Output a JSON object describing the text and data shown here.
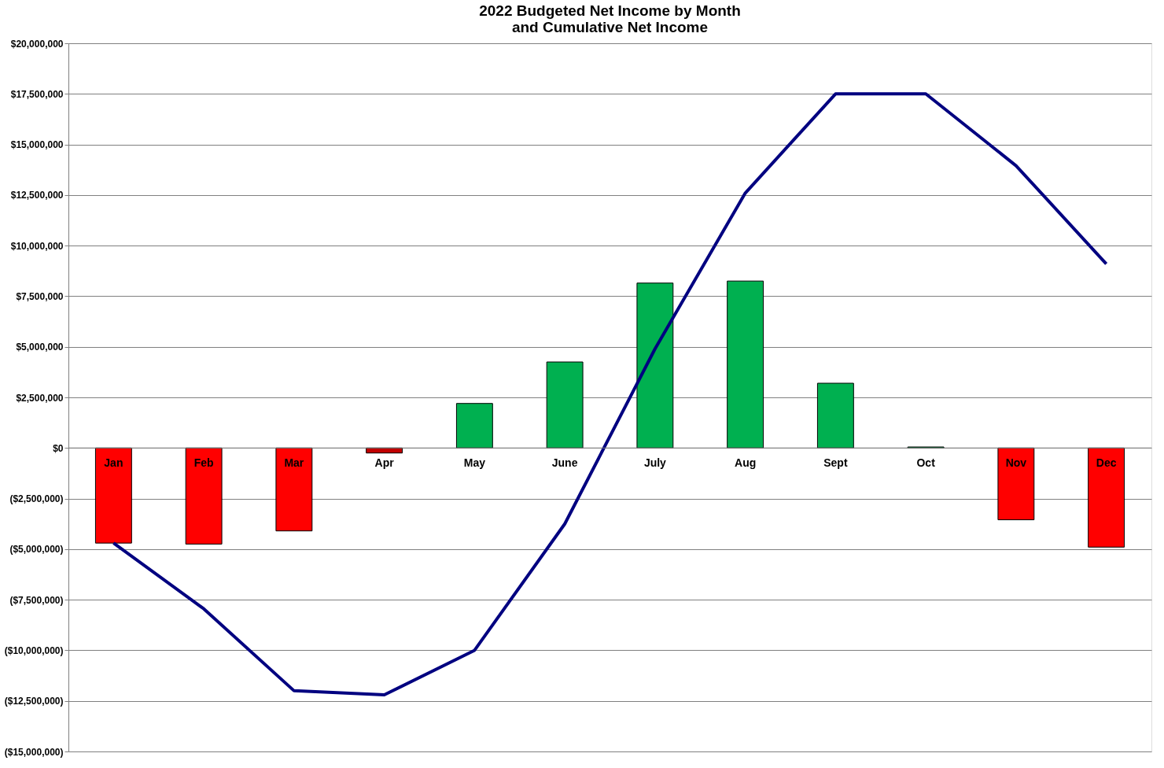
{
  "chart_data": {
    "type": "bar",
    "title": "2022 Budgeted Net Income by Month\nand Cumulative Net Income",
    "categories": [
      "Jan",
      "Feb",
      "Mar",
      "Apr",
      "May",
      "June",
      "July",
      "Aug",
      "Sept",
      "Oct",
      "Nov",
      "Dec"
    ],
    "series": [
      {
        "type": "bar",
        "colors": [
          "#ff0000",
          "#ff0000",
          "#ff0000",
          "#c00000",
          "#00b050",
          "#00b050",
          "#00b050",
          "#00b050",
          "#00b050",
          "#00b050",
          "#ff0000",
          "#ff0000"
        ],
        "values": [
          -4700000,
          -4750000,
          -4100000,
          -250000,
          2200000,
          4250000,
          8150000,
          8250000,
          3200000,
          50000,
          -3550000,
          -4900000
        ]
      },
      {
        "type": "line",
        "color": "#000080",
        "values": [
          -4700000,
          -7950000,
          -12000000,
          -12200000,
          -10000000,
          -3750000,
          4900000,
          12600000,
          17500000,
          17500000,
          13950000,
          9100000
        ]
      }
    ],
    "ylim": [
      -15000000,
      20000000
    ],
    "yticks": [
      {
        "value": -15000000,
        "label": "($15,000,000)"
      },
      {
        "value": -12500000,
        "label": "($12,500,000)"
      },
      {
        "value": -10000000,
        "label": "($10,000,000)"
      },
      {
        "value": -7500000,
        "label": "($7,500,000)"
      },
      {
        "value": -5000000,
        "label": "($5,000,000)"
      },
      {
        "value": -2500000,
        "label": "($2,500,000)"
      },
      {
        "value": 0,
        "label": "$0"
      },
      {
        "value": 2500000,
        "label": "$2,500,000"
      },
      {
        "value": 5000000,
        "label": "$5,000,000"
      },
      {
        "value": 7500000,
        "label": "$7,500,000"
      },
      {
        "value": 10000000,
        "label": "$10,000,000"
      },
      {
        "value": 12500000,
        "label": "$12,500,000"
      },
      {
        "value": 15000000,
        "label": "$15,000,000"
      },
      {
        "value": 17500000,
        "label": "$17,500,000"
      },
      {
        "value": 20000000,
        "label": "$20,000,000"
      }
    ],
    "grid": "y",
    "line_style": "solid",
    "marker": "none"
  }
}
